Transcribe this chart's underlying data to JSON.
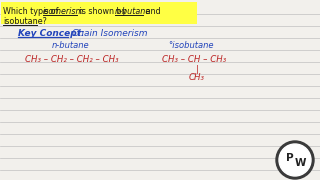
{
  "bg_color": "#f2f0ec",
  "line_color": "#c0c0c0",
  "highlight_color": "#ffff44",
  "text_color_dark": "#1a1a1a",
  "text_color_blue": "#2244bb",
  "text_color_red": "#bb2222",
  "watermark_bg": "#444444",
  "watermark_fg": "#ffffff",
  "q_line1_plain1": "Which type of ",
  "q_line1_italic1": "isomerism",
  "q_line1_plain2": " is shown by ",
  "q_line1_italic2": "n-butane",
  "q_line1_plain3": " and",
  "q_line2": "isobutane?",
  "key_label": "Key Concept:",
  "key_value": "   Chain Isomerism",
  "n_butane_label": "n-butane",
  "iso_butane_label": "°isobutane",
  "n_butane_formula": "CH₃ – CH₂ – CH₂ – CH₃",
  "iso_top": "CH₃ – CH – CH₃",
  "iso_bond": "|",
  "iso_bottom": "CH₃",
  "fs_question": 5.8,
  "fs_key": 6.5,
  "fs_label": 6.0,
  "fs_formula": 6.2,
  "fs_watermark": 7.5
}
